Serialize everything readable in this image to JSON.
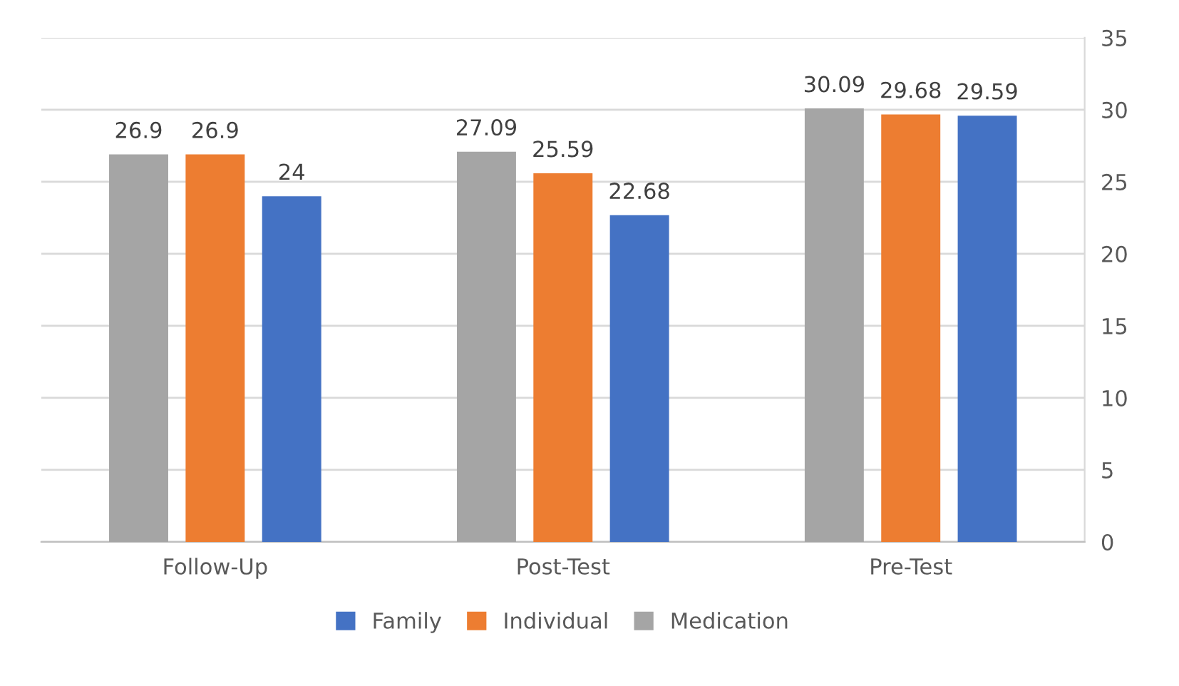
{
  "chart_data": {
    "type": "bar",
    "categories": [
      "Follow-Up",
      "Post-Test",
      "Pre-Test"
    ],
    "series": [
      {
        "name": "Medication",
        "color": "#a5a5a5",
        "values": [
          26.9,
          27.09,
          30.09
        ]
      },
      {
        "name": "Individual",
        "color": "#ed7d31",
        "values": [
          26.9,
          25.59,
          29.68
        ]
      },
      {
        "name": "Family",
        "color": "#4472c4",
        "values": [
          24,
          22.68,
          29.59
        ]
      }
    ],
    "ylim": [
      0,
      35
    ],
    "yticks": [
      0,
      5,
      10,
      15,
      20,
      25,
      30,
      35
    ],
    "grid": "y",
    "legend": "bottom",
    "data_labels": true
  }
}
